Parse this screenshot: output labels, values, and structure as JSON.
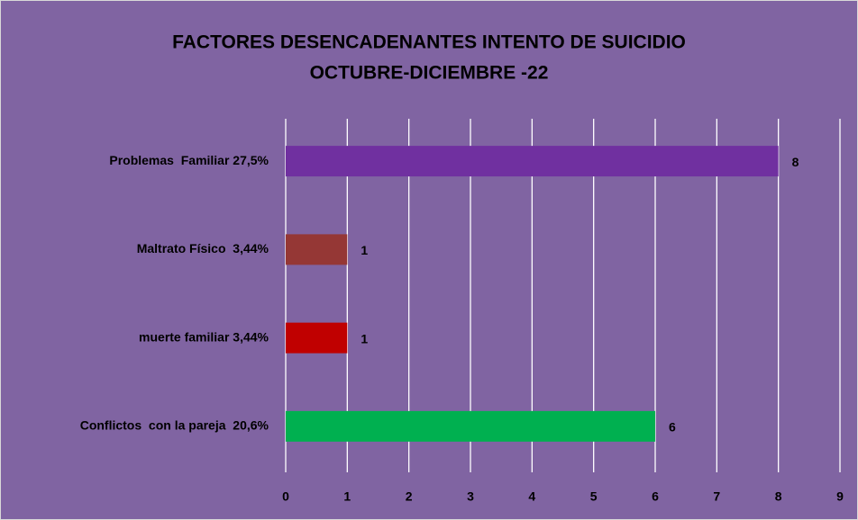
{
  "chart_data": {
    "type": "hbar",
    "title": "FACTORES DESENCADENANTES INTENTO DE SUICIDIO",
    "subtitle": "OCTUBRE-DICIEMBRE -22",
    "categories": [
      "Problemas  Familiar 27,5%",
      "Maltrato Físico  3,44%",
      "muerte familiar 3,44%",
      "Conflictos  con la pareja  20,6%"
    ],
    "values": [
      8,
      1,
      1,
      6
    ],
    "colors": [
      "#7030a0",
      "#953735",
      "#c00000",
      "#00b050"
    ],
    "xlim": [
      0,
      9
    ],
    "xticks": [
      0,
      1,
      2,
      3,
      4,
      5,
      6,
      7,
      8,
      9
    ],
    "grid": true
  }
}
